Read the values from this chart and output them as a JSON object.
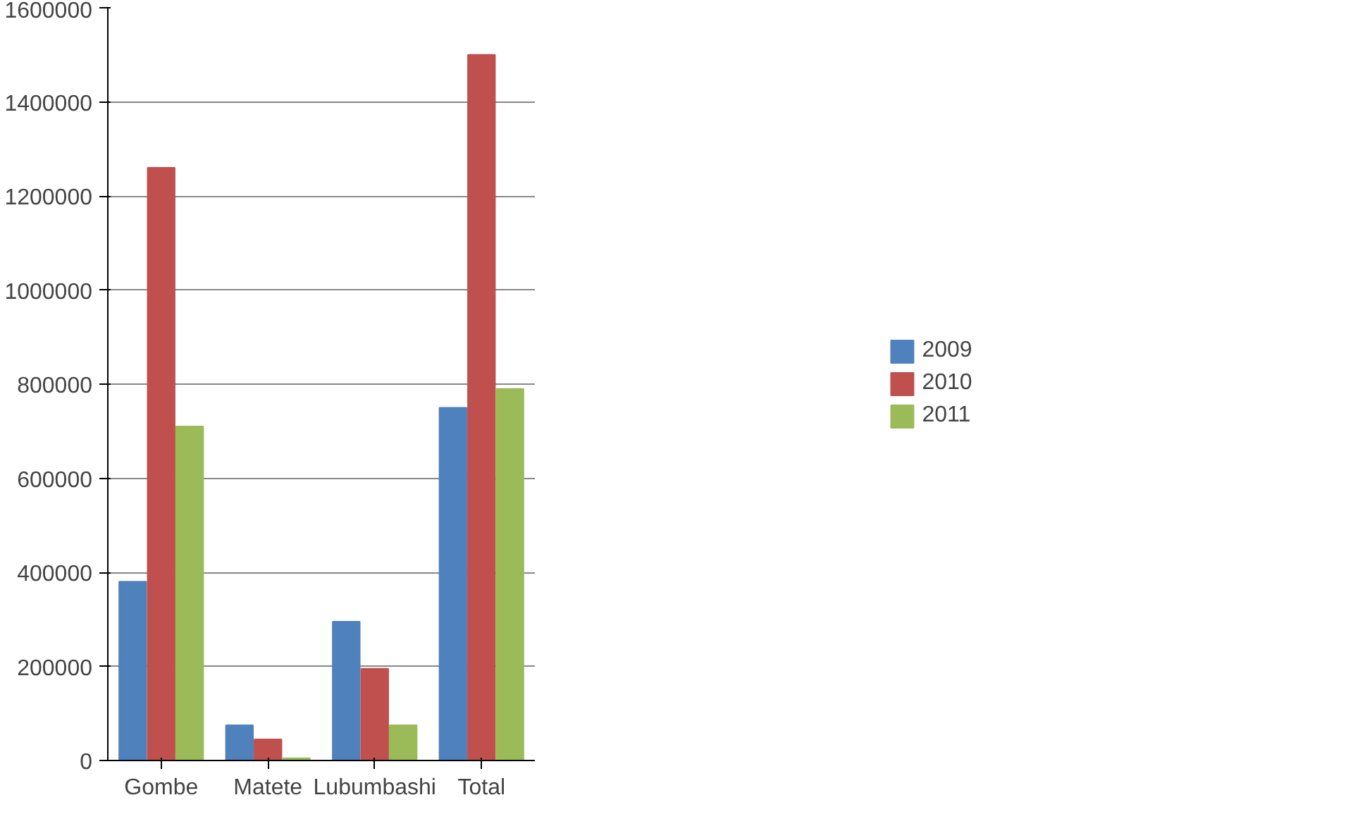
{
  "chart_data": {
    "type": "bar",
    "categories": [
      "Gombe",
      "Matete",
      "Lubumbashi",
      "Total"
    ],
    "series": [
      {
        "name": "2009",
        "color": "#4f81bd",
        "values": [
          380000,
          75000,
          295000,
          750000
        ]
      },
      {
        "name": "2010",
        "color": "#c0504d",
        "values": [
          1260000,
          45000,
          195000,
          1500000
        ]
      },
      {
        "name": "2011",
        "color": "#9bbb59",
        "values": [
          710000,
          5000,
          75000,
          790000
        ]
      }
    ],
    "ylim": [
      0,
      1600000
    ],
    "yticks": [
      0,
      200000,
      400000,
      600000,
      800000,
      1000000,
      1200000,
      1400000,
      1600000
    ],
    "grid": "y",
    "legend": "right"
  }
}
